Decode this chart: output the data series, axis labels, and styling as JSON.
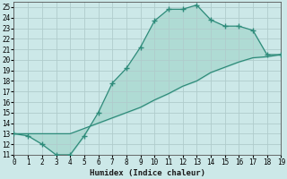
{
  "xlabel": "Humidex (Indice chaleur)",
  "upper_x": [
    0,
    1,
    2,
    3,
    4,
    5,
    6,
    7,
    8,
    9,
    10,
    11,
    12,
    13,
    14,
    15,
    16,
    17,
    18,
    19
  ],
  "upper_y": [
    13,
    12.8,
    12.0,
    11.0,
    11.0,
    12.8,
    15.0,
    17.8,
    19.2,
    21.2,
    23.7,
    24.8,
    24.8,
    25.2,
    23.8,
    23.2,
    23.2,
    22.8,
    20.5,
    20.5
  ],
  "lower_x": [
    0,
    1,
    2,
    3,
    4,
    5,
    6,
    7,
    8,
    9,
    10,
    11,
    12,
    13,
    14,
    15,
    16,
    17,
    18,
    19
  ],
  "lower_y": [
    13.0,
    13.0,
    13.0,
    13.0,
    13.0,
    13.5,
    14.0,
    14.5,
    15.0,
    15.5,
    16.2,
    16.8,
    17.5,
    18.0,
    18.8,
    19.3,
    19.8,
    20.2,
    20.3,
    20.5
  ],
  "line_color": "#2e8b7a",
  "fill_color": "#a8d8d0",
  "bg_color": "#cce8e8",
  "grid_color": "#b0cccc",
  "xlim": [
    0,
    19
  ],
  "ylim": [
    11,
    25.5
  ],
  "xticks": [
    0,
    1,
    2,
    3,
    4,
    5,
    6,
    7,
    8,
    9,
    10,
    11,
    12,
    13,
    14,
    15,
    16,
    17,
    18,
    19
  ],
  "yticks": [
    11,
    12,
    13,
    14,
    15,
    16,
    17,
    18,
    19,
    20,
    21,
    22,
    23,
    24,
    25
  ],
  "marker": "+",
  "upper_markersize": 4,
  "lower_markersize": 3,
  "linewidth": 0.9,
  "xlabel_fontsize": 6.5,
  "tick_fontsize": 5.5
}
